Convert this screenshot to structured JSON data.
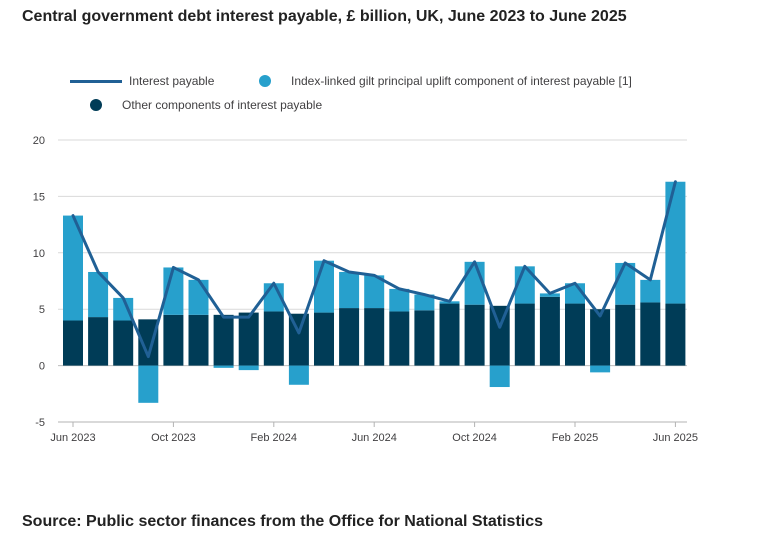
{
  "chart_data": {
    "type": "bar",
    "title": "Central government debt interest payable, £ billion, UK, June 2023 to June 2025",
    "xlabel": "",
    "ylabel": "",
    "ylim": [
      -5,
      20
    ],
    "yticks": [
      -5,
      0,
      5,
      10,
      15,
      20
    ],
    "xtick_labels": [
      {
        "index": 0,
        "label": "Jun 2023"
      },
      {
        "index": 4,
        "label": "Oct 2023"
      },
      {
        "index": 8,
        "label": "Feb 2024"
      },
      {
        "index": 12,
        "label": "Jun 2024"
      },
      {
        "index": 16,
        "label": "Oct 2024"
      },
      {
        "index": 20,
        "label": "Feb 2025"
      },
      {
        "index": 24,
        "label": "Jun 2025"
      }
    ],
    "categories": [
      "Jun 2023",
      "Jul 2023",
      "Aug 2023",
      "Sep 2023",
      "Oct 2023",
      "Nov 2023",
      "Dec 2023",
      "Jan 2024",
      "Feb 2024",
      "Mar 2024",
      "Apr 2024",
      "May 2024",
      "Jun 2024",
      "Jul 2024",
      "Aug 2024",
      "Sep 2024",
      "Oct 2024",
      "Nov 2024",
      "Dec 2024",
      "Jan 2025",
      "Feb 2025",
      "Mar 2025",
      "Apr 2025",
      "May 2025",
      "Jun 2025"
    ],
    "series": [
      {
        "name": "Other components of interest payable",
        "kind": "bar",
        "color": "#003c57",
        "values": [
          4.0,
          4.3,
          4.0,
          4.1,
          4.5,
          4.5,
          4.5,
          4.7,
          4.8,
          4.6,
          4.7,
          5.1,
          5.1,
          4.8,
          4.9,
          5.5,
          5.4,
          5.3,
          5.5,
          6.1,
          5.5,
          5.0,
          5.4,
          5.6,
          5.5
        ]
      },
      {
        "name": "Index-linked gilt principal uplift component of interest payable [1]",
        "kind": "bar",
        "color": "#27a0cc",
        "values": [
          9.3,
          4.0,
          2.0,
          -3.3,
          4.2,
          3.1,
          -0.2,
          -0.4,
          2.5,
          -1.7,
          4.6,
          3.2,
          2.9,
          2.0,
          1.4,
          0.2,
          3.8,
          -1.9,
          3.3,
          0.3,
          1.8,
          -0.6,
          3.7,
          2.0,
          10.8
        ]
      },
      {
        "name": "Interest payable",
        "kind": "line",
        "color": "#206095",
        "values": [
          13.3,
          8.3,
          6.0,
          0.8,
          8.7,
          7.6,
          4.3,
          4.3,
          7.3,
          2.9,
          9.3,
          8.3,
          8.0,
          6.8,
          6.3,
          5.7,
          9.2,
          3.4,
          8.8,
          6.4,
          7.3,
          4.4,
          9.1,
          7.6,
          16.3
        ]
      }
    ]
  },
  "legend": {
    "line_label": "Interest payable",
    "uplift_label": "Index-linked gilt principal uplift component of interest payable [1]",
    "other_label": "Other components of interest payable"
  },
  "colors": {
    "line": "#206095",
    "uplift": "#27a0cc",
    "other": "#003c57",
    "grid": "#d9d9d9",
    "axis": "#b3b3b3"
  },
  "source": "Source: Public sector finances from the Office for National Statistics"
}
